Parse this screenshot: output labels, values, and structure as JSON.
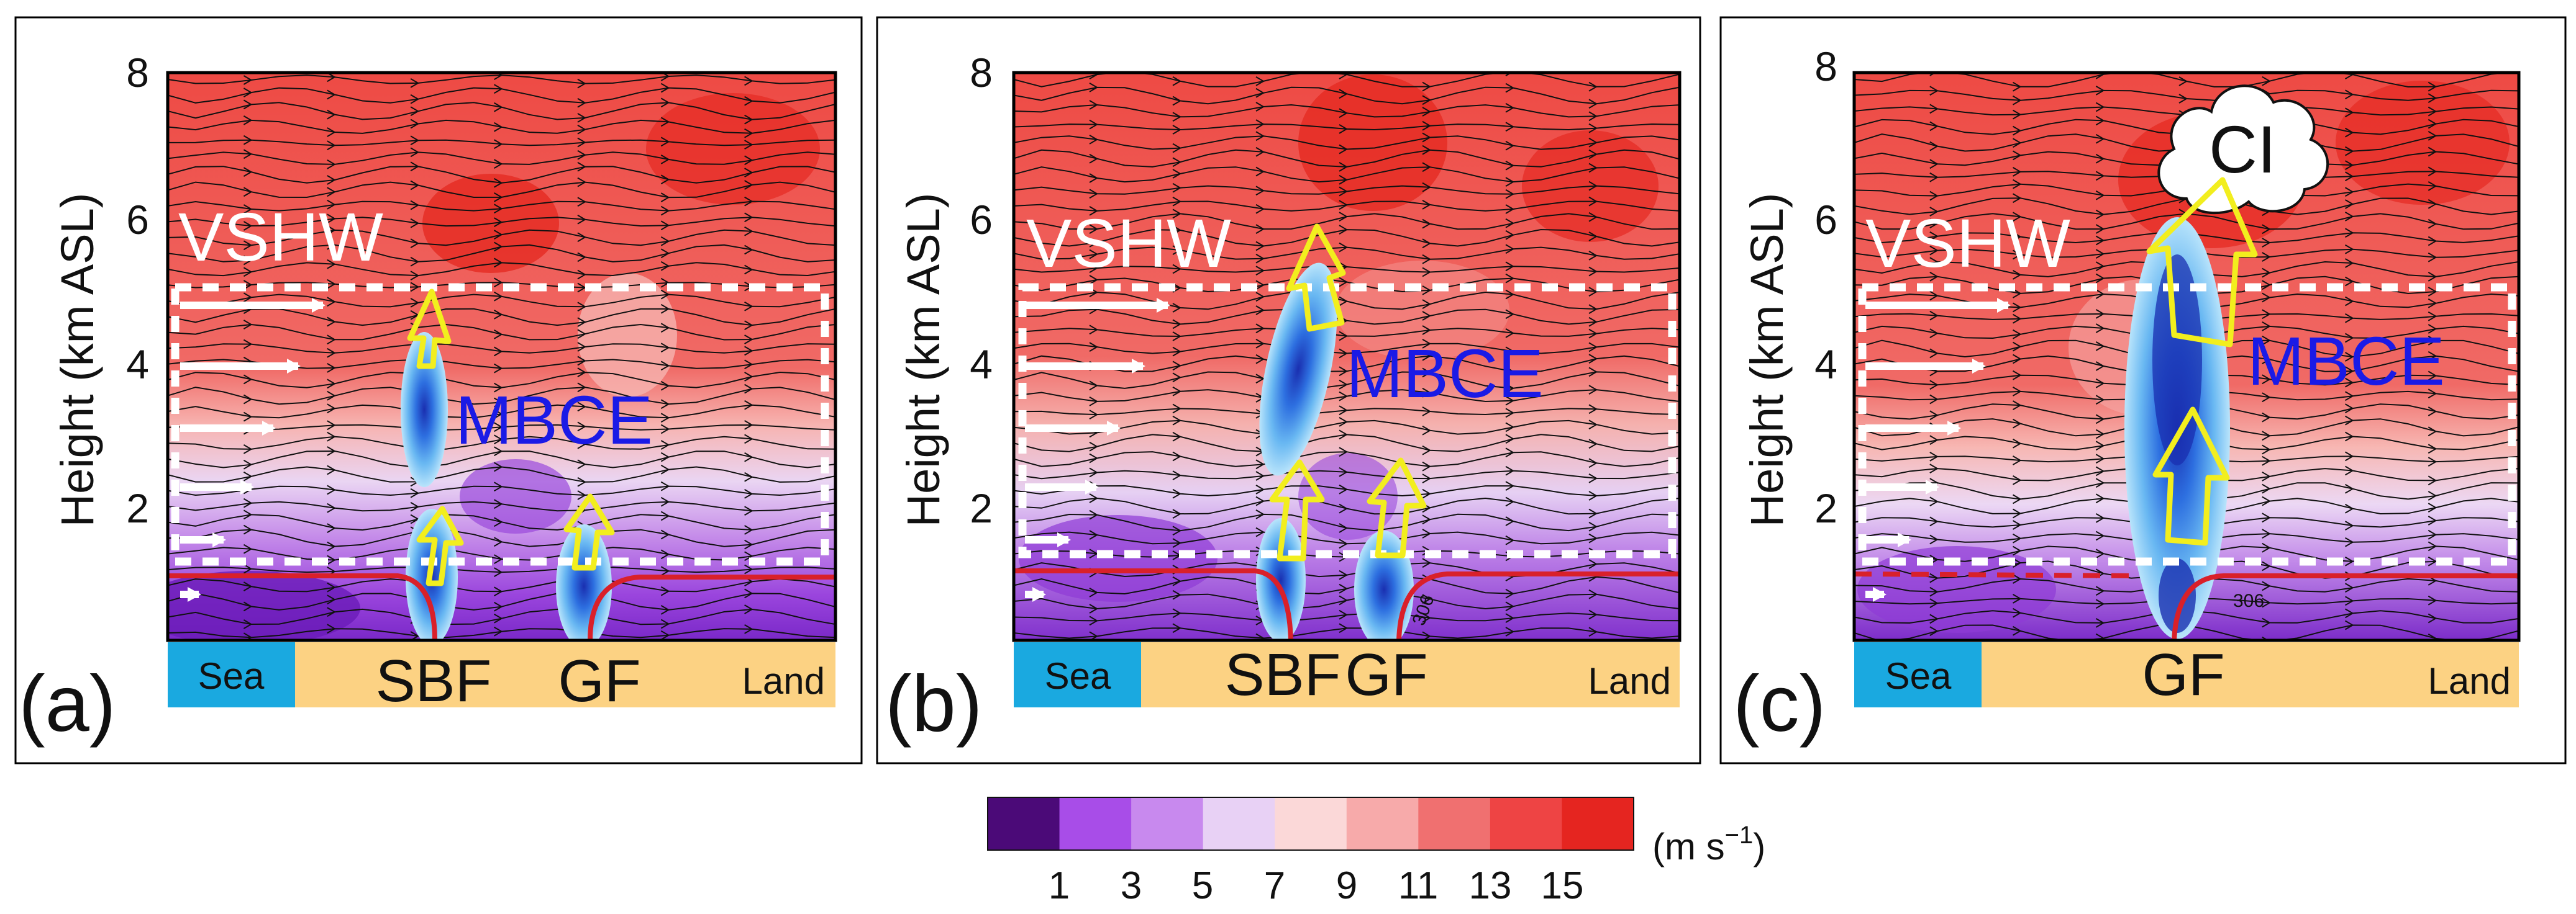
{
  "panels": [
    {
      "letter": "(a)",
      "ylabel": "Height (km ASL)",
      "vshw": "VSHW",
      "mbce": "MBCE",
      "yticks": [
        "2",
        "4",
        "6",
        "8"
      ],
      "ground": {
        "sea": "Sea",
        "land": "Land",
        "fronts": [
          "SBF",
          "GF"
        ]
      }
    },
    {
      "letter": "(b)",
      "ylabel": "Height (km ASL)",
      "vshw": "VSHW",
      "mbce": "MBCE",
      "yticks": [
        "2",
        "4",
        "6",
        "8"
      ],
      "ground": {
        "sea": "Sea",
        "land": "Land",
        "fronts": [
          "SBF",
          "GF"
        ]
      },
      "contour_label": "306"
    },
    {
      "letter": "(c)",
      "ylabel": "Height (km ASL)",
      "vshw": "VSHW",
      "mbce": "MBCE",
      "yticks": [
        "2",
        "4",
        "6",
        "8"
      ],
      "ground": {
        "sea": "Sea",
        "land": "Land",
        "fronts": [
          "GF"
        ]
      },
      "contour_label": "306",
      "ci": "CI"
    }
  ],
  "colorbar": {
    "ticks": [
      "1",
      "3",
      "5",
      "7",
      "9",
      "11",
      "13",
      "15"
    ],
    "units": "(m s",
    "units_exp": "−1",
    "units_close": ")",
    "colors": [
      "#4b0a78",
      "#a84de8",
      "#c889ee",
      "#e8d1f5",
      "#fbd8d8",
      "#f7aaaa",
      "#f07070",
      "#ee4444",
      "#e52520"
    ]
  },
  "colors": {
    "sea": "#1aa9e0",
    "land": "#fcd283",
    "front_line": "#d9202a",
    "arrow_yellow": "#f2ee1e",
    "text_blue": "#1a1ae6"
  }
}
